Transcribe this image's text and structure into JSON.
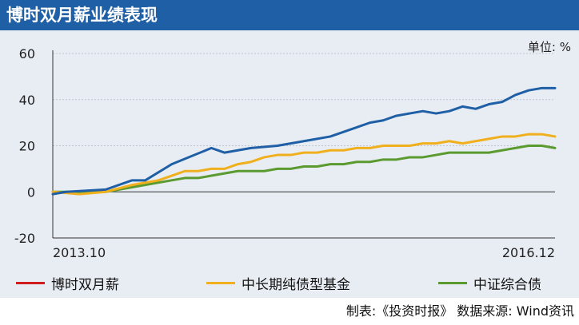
{
  "header": {
    "title": "博时双月薪业绩表现"
  },
  "chart_data": {
    "type": "line",
    "title": "博时双月薪业绩表现",
    "unit": "单位: %",
    "ylim": [
      -20,
      60
    ],
    "yticks": [
      -20,
      0,
      20,
      40,
      60
    ],
    "x_range": [
      0,
      38
    ],
    "x_tick_labels": [
      {
        "x": 0,
        "label": "2013.10"
      },
      {
        "x": 38,
        "label": "2016.12"
      }
    ],
    "grid": true,
    "series": [
      {
        "name": "博时双月薪",
        "color": "#1f5fa5",
        "legend_color": "#d01c1c",
        "x": [
          0,
          1,
          4,
          6,
          7,
          9,
          12,
          13,
          15,
          17,
          18,
          19,
          21,
          22,
          23,
          24,
          25,
          26,
          27,
          28,
          29,
          30,
          31,
          32,
          33,
          34,
          35,
          36,
          37,
          38
        ],
        "values": [
          -1,
          0,
          1,
          5,
          5,
          12,
          19,
          17,
          19,
          20,
          21,
          22,
          24,
          26,
          28,
          30,
          31,
          33,
          34,
          35,
          34,
          35,
          37,
          36,
          38,
          39,
          42,
          44,
          45,
          45
        ]
      },
      {
        "name": "中长期纯债型基金",
        "color": "#f0b01e",
        "legend_color": "#f0b01e",
        "x": [
          0,
          2,
          4,
          6,
          8,
          9,
          10,
          11,
          12,
          13,
          14,
          15,
          16,
          17,
          18,
          19,
          20,
          21,
          22,
          23,
          24,
          25,
          26,
          27,
          28,
          29,
          30,
          31,
          32,
          33,
          34,
          35,
          36,
          37,
          38
        ],
        "values": [
          0,
          -1,
          0,
          3,
          5,
          7,
          9,
          9,
          10,
          10,
          12,
          13,
          15,
          16,
          16,
          17,
          17,
          18,
          18,
          19,
          19,
          20,
          20,
          20,
          21,
          21,
          22,
          21,
          22,
          23,
          24,
          24,
          25,
          25,
          24
        ]
      },
      {
        "name": "中证综合债",
        "color": "#5a9a2e",
        "legend_color": "#5a9a2e",
        "x": [
          0,
          2,
          4,
          6,
          8,
          9,
          10,
          11,
          12,
          13,
          14,
          15,
          16,
          17,
          18,
          19,
          20,
          21,
          22,
          23,
          24,
          25,
          26,
          27,
          28,
          29,
          30,
          31,
          32,
          33,
          34,
          35,
          36,
          37,
          38
        ],
        "values": [
          0,
          0,
          0,
          2,
          4,
          5,
          6,
          6,
          7,
          8,
          9,
          9,
          9,
          10,
          10,
          11,
          11,
          12,
          12,
          13,
          13,
          14,
          14,
          15,
          15,
          16,
          17,
          17,
          17,
          17,
          18,
          19,
          20,
          20,
          19
        ]
      }
    ]
  },
  "footer": {
    "source": "制表:《投资时报》 数据来源: Wind资讯"
  }
}
